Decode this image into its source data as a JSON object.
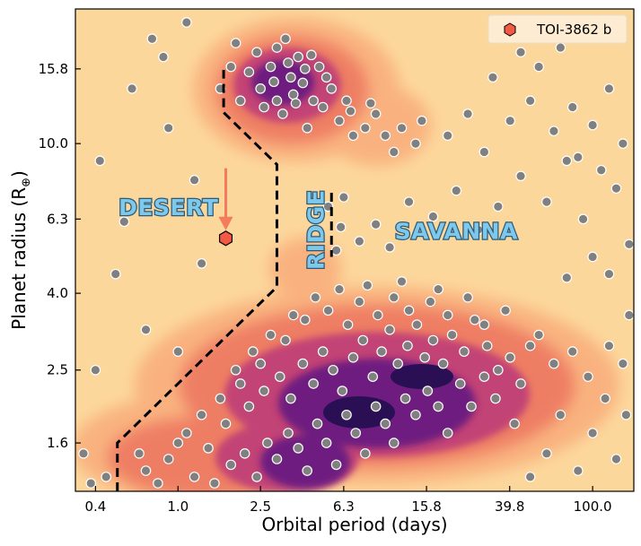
{
  "chart_data": {
    "type": "scatter",
    "xlabel": "Orbital period (days)",
    "ylabel_main": "Planet radius (R",
    "ylabel_symbol": "⊕",
    "ylabel_close": ")",
    "x_scale": "log",
    "y_scale": "log",
    "xlim": [
      0.32,
      158
    ],
    "ylim": [
      1.19,
      22.8
    ],
    "x_ticks": [
      0.4,
      1.0,
      2.5,
      6.3,
      15.8,
      39.8,
      100.0
    ],
    "x_tick_labels": [
      "0.4",
      "1.0",
      "2.5",
      "6.3",
      "15.8",
      "39.8",
      "100.0"
    ],
    "y_ticks": [
      1.6,
      2.5,
      4.0,
      6.3,
      10.0,
      15.8
    ],
    "y_tick_labels": [
      "1.6",
      "2.5",
      "4.0",
      "6.3",
      "10.0",
      "15.8"
    ],
    "grid": false,
    "background_color": "#fcd79c",
    "point_color": "#808080",
    "density_colors": [
      "#f9b27f",
      "#ee7e63",
      "#e35a5e",
      "#b8367a",
      "#6e1f80",
      "#2b0f54"
    ],
    "legend": {
      "placement": "top-right",
      "entries": [
        {
          "label": "TOI-3862 b",
          "marker": "hexagon",
          "color": "#f25a45"
        }
      ]
    },
    "highlight": {
      "name": "TOI-3862 b",
      "period": 1.7,
      "radius": 5.6,
      "color": "#f25a45",
      "arrow_from_radius": 8.6,
      "arrow_color": "#f47c5c"
    },
    "region_labels": [
      {
        "text": "DESERT",
        "period": 0.9,
        "radius": 6.7
      },
      {
        "text": "RIDGE",
        "period": 4.7,
        "radius": 5.9,
        "rotation": "vertical"
      },
      {
        "text": "SAVANNA",
        "period": 22,
        "radius": 5.8
      }
    ],
    "boundaries": [
      {
        "name": "desert-boundary",
        "style": "dashed",
        "points": [
          [
            0.51,
            1.19
          ],
          [
            0.51,
            1.6
          ],
          [
            3.0,
            4.16
          ],
          [
            3.0,
            8.8
          ],
          [
            1.66,
            12.1
          ],
          [
            1.66,
            15.7
          ]
        ]
      },
      {
        "name": "ridge-boundary",
        "style": "dashed",
        "points": [
          [
            5.5,
            7.4
          ],
          [
            5.5,
            5.0
          ]
        ]
      }
    ],
    "points": [
      [
        2.5,
        14
      ],
      [
        3,
        13
      ],
      [
        3.5,
        15
      ],
      [
        4,
        14.5
      ],
      [
        3.2,
        12
      ],
      [
        2.8,
        16
      ],
      [
        4.5,
        13
      ],
      [
        3.8,
        17
      ],
      [
        2.2,
        15.5
      ],
      [
        5,
        12.5
      ],
      [
        6,
        11.5
      ],
      [
        3,
        18
      ],
      [
        4.2,
        11
      ],
      [
        2,
        13
      ],
      [
        1.8,
        16
      ],
      [
        5.5,
        14
      ],
      [
        7,
        10.5
      ],
      [
        8,
        11
      ],
      [
        9,
        12
      ],
      [
        10,
        10.5
      ],
      [
        12,
        11
      ],
      [
        3.6,
        13.5
      ],
      [
        2.6,
        12.5
      ],
      [
        4.8,
        16
      ],
      [
        1.6,
        14
      ],
      [
        3.3,
        19
      ],
      [
        6.5,
        13
      ],
      [
        11,
        9.5
      ],
      [
        14,
        10
      ],
      [
        15,
        11.5
      ],
      [
        2.4,
        17.5
      ],
      [
        4.1,
        15.8
      ],
      [
        3.7,
        12.8
      ],
      [
        5.2,
        15
      ],
      [
        2.9,
        14.6
      ],
      [
        3.4,
        16.4
      ],
      [
        4.4,
        17.2
      ],
      [
        6.8,
        12.2
      ],
      [
        8.5,
        12.8
      ],
      [
        1.9,
        18.5
      ],
      [
        1.8,
        1.4
      ],
      [
        2.1,
        1.5
      ],
      [
        2.4,
        1.3
      ],
      [
        2.7,
        1.6
      ],
      [
        3.0,
        1.45
      ],
      [
        3.4,
        1.7
      ],
      [
        3.8,
        1.55
      ],
      [
        4.2,
        1.35
      ],
      [
        4.7,
        1.8
      ],
      [
        5.2,
        1.6
      ],
      [
        5.8,
        1.4
      ],
      [
        6.5,
        1.9
      ],
      [
        7.2,
        1.7
      ],
      [
        8,
        1.5
      ],
      [
        9,
        2.0
      ],
      [
        10,
        1.8
      ],
      [
        11,
        1.6
      ],
      [
        12.5,
        2.1
      ],
      [
        14,
        1.9
      ],
      [
        16,
        2.2
      ],
      [
        18,
        2.0
      ],
      [
        20,
        1.7
      ],
      [
        23,
        2.3
      ],
      [
        26,
        2.0
      ],
      [
        30,
        2.4
      ],
      [
        34,
        2.1
      ],
      [
        2.2,
        2.0
      ],
      [
        2.6,
        2.2
      ],
      [
        3.1,
        2.4
      ],
      [
        3.5,
        2.1
      ],
      [
        4.0,
        2.6
      ],
      [
        4.5,
        2.3
      ],
      [
        5.0,
        2.8
      ],
      [
        5.6,
        2.5
      ],
      [
        6.2,
        2.2
      ],
      [
        7.0,
        2.7
      ],
      [
        7.8,
        3.0
      ],
      [
        8.7,
        2.4
      ],
      [
        9.6,
        2.8
      ],
      [
        10.5,
        3.2
      ],
      [
        11.5,
        2.6
      ],
      [
        12.8,
        2.9
      ],
      [
        14.2,
        3.3
      ],
      [
        15.5,
        2.7
      ],
      [
        17,
        3.0
      ],
      [
        19,
        2.6
      ],
      [
        21,
        3.1
      ],
      [
        24,
        2.8
      ],
      [
        27,
        3.4
      ],
      [
        31,
        2.9
      ],
      [
        35,
        2.5
      ],
      [
        40,
        2.7
      ],
      [
        45,
        2.3
      ],
      [
        50,
        2.9
      ],
      [
        3.3,
        3.0
      ],
      [
        4.1,
        3.4
      ],
      [
        5.3,
        3.6
      ],
      [
        6.6,
        3.3
      ],
      [
        7.5,
        3.8
      ],
      [
        9.2,
        3.5
      ],
      [
        11,
        3.9
      ],
      [
        13,
        3.6
      ],
      [
        16.5,
        3.8
      ],
      [
        20,
        3.5
      ],
      [
        25,
        3.9
      ],
      [
        30,
        3.3
      ],
      [
        38,
        3.6
      ],
      [
        55,
        3.1
      ],
      [
        65,
        2.6
      ],
      [
        80,
        2.8
      ],
      [
        95,
        2.4
      ],
      [
        120,
        2.9
      ],
      [
        140,
        2.6
      ],
      [
        1.2,
        1.3
      ],
      [
        1.4,
        1.55
      ],
      [
        1.1,
        1.7
      ],
      [
        0.9,
        1.45
      ],
      [
        0.8,
        1.25
      ],
      [
        1.3,
        1.9
      ],
      [
        1.6,
        2.1
      ],
      [
        1.5,
        1.25
      ],
      [
        0.7,
        1.35
      ],
      [
        0.65,
        1.5
      ],
      [
        1.0,
        1.6
      ],
      [
        1.7,
        1.8
      ],
      [
        1.9,
        2.5
      ],
      [
        2.3,
        2.8
      ],
      [
        2.0,
        2.3
      ],
      [
        2.8,
        3.1
      ],
      [
        3.6,
        3.5
      ],
      [
        4.6,
        3.9
      ],
      [
        2.5,
        2.6
      ],
      [
        6.0,
        4.1
      ],
      [
        8.2,
        4.2
      ],
      [
        12,
        4.3
      ],
      [
        18,
        4.1
      ],
      [
        5.8,
        5.2
      ],
      [
        6.1,
        6.0
      ],
      [
        5.3,
        6.8
      ],
      [
        6.3,
        7.2
      ],
      [
        7.5,
        5.5
      ],
      [
        9,
        6.1
      ],
      [
        10.5,
        5.3
      ],
      [
        13,
        7.0
      ],
      [
        17,
        6.4
      ],
      [
        22,
        7.5
      ],
      [
        28,
        5.9
      ],
      [
        35,
        6.8
      ],
      [
        45,
        8.2
      ],
      [
        60,
        7.0
      ],
      [
        75,
        9.0
      ],
      [
        90,
        6.3
      ],
      [
        110,
        8.5
      ],
      [
        130,
        7.6
      ],
      [
        150,
        5.4
      ],
      [
        20,
        10.5
      ],
      [
        25,
        12
      ],
      [
        30,
        9.5
      ],
      [
        40,
        11.5
      ],
      [
        50,
        13
      ],
      [
        65,
        10.8
      ],
      [
        80,
        12.5
      ],
      [
        100,
        11.2
      ],
      [
        120,
        14
      ],
      [
        140,
        10
      ],
      [
        55,
        16
      ],
      [
        85,
        9.2
      ],
      [
        33,
        15
      ],
      [
        45,
        17.5
      ],
      [
        70,
        18
      ],
      [
        0.35,
        1.5
      ],
      [
        0.38,
        1.25
      ],
      [
        0.4,
        2.5
      ],
      [
        0.45,
        1.3
      ],
      [
        0.42,
        9.0
      ],
      [
        0.6,
        14
      ],
      [
        0.75,
        19
      ],
      [
        1.1,
        21
      ],
      [
        0.9,
        11
      ],
      [
        1.2,
        8.0
      ],
      [
        0.55,
        6.2
      ],
      [
        0.5,
        4.5
      ],
      [
        0.7,
        3.2
      ],
      [
        1.0,
        2.8
      ],
      [
        1.3,
        4.8
      ],
      [
        0.85,
        17
      ],
      [
        60,
        1.5
      ],
      [
        70,
        1.9
      ],
      [
        85,
        1.35
      ],
      [
        100,
        1.7
      ],
      [
        115,
        2.1
      ],
      [
        130,
        1.45
      ],
      [
        145,
        1.9
      ],
      [
        50,
        1.3
      ],
      [
        42,
        1.8
      ],
      [
        120,
        4.5
      ],
      [
        150,
        3.5
      ],
      [
        100,
        5.0
      ],
      [
        75,
        4.4
      ]
    ]
  }
}
